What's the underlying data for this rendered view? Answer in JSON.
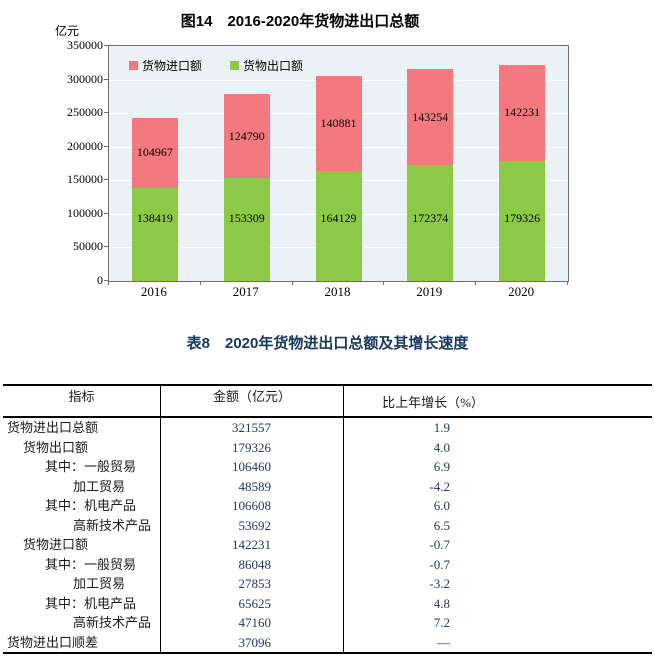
{
  "chart": {
    "title": "图14　2016-2020年货物进出口总额",
    "unit_label": "亿元"
  },
  "chart_data": {
    "type": "bar",
    "stacked": true,
    "title": "图14　2016-2020年货物进出口总额",
    "ylabel": "亿元",
    "categories": [
      "2016",
      "2017",
      "2018",
      "2019",
      "2020"
    ],
    "series": [
      {
        "name": "货物出口额",
        "color": "#8cc947",
        "values": [
          138419,
          153309,
          164129,
          172374,
          179326
        ]
      },
      {
        "name": "货物进口额",
        "color": "#f4797e",
        "values": [
          104967,
          124790,
          140881,
          143254,
          142231
        ]
      }
    ],
    "legend": [
      "货物进口额",
      "货物出口额"
    ],
    "legend_position": "top-left-inside",
    "ylim": [
      0,
      350000
    ],
    "ytick_step": 50000,
    "grid": true,
    "plot_bg": "#ebf2f6"
  },
  "table": {
    "title": "表8　2020年货物进出口总额及其增长速度",
    "columns": [
      "指标",
      "金额（亿元）",
      "比上年增长（%）"
    ],
    "rows": [
      {
        "label": "货物进出口总额",
        "indent": 0,
        "amount": "321557",
        "growth": "1.9"
      },
      {
        "label": "货物出口额",
        "indent": 1,
        "amount": "179326",
        "growth": "4.0"
      },
      {
        "label": "其中：一般贸易",
        "indent": 2,
        "amount": "106460",
        "growth": "6.9"
      },
      {
        "label": "加工贸易",
        "indent": 3,
        "amount": "48589",
        "growth": "-4.2"
      },
      {
        "label": "其中：机电产品",
        "indent": 2,
        "amount": "106608",
        "growth": "6.0"
      },
      {
        "label": "高新技术产品",
        "indent": 3,
        "amount": "53692",
        "growth": "6.5"
      },
      {
        "label": "货物进口额",
        "indent": 1,
        "amount": "142231",
        "growth": "-0.7"
      },
      {
        "label": "其中：一般贸易",
        "indent": 2,
        "amount": "86048",
        "growth": "-0.7"
      },
      {
        "label": "加工贸易",
        "indent": 3,
        "amount": "27853",
        "growth": "-3.2"
      },
      {
        "label": "其中：机电产品",
        "indent": 2,
        "amount": "65625",
        "growth": "4.8"
      },
      {
        "label": "高新技术产品",
        "indent": 3,
        "amount": "47160",
        "growth": "7.2"
      },
      {
        "label": "货物进出口顺差",
        "indent": 0,
        "amount": "37096",
        "growth": "—"
      }
    ]
  }
}
